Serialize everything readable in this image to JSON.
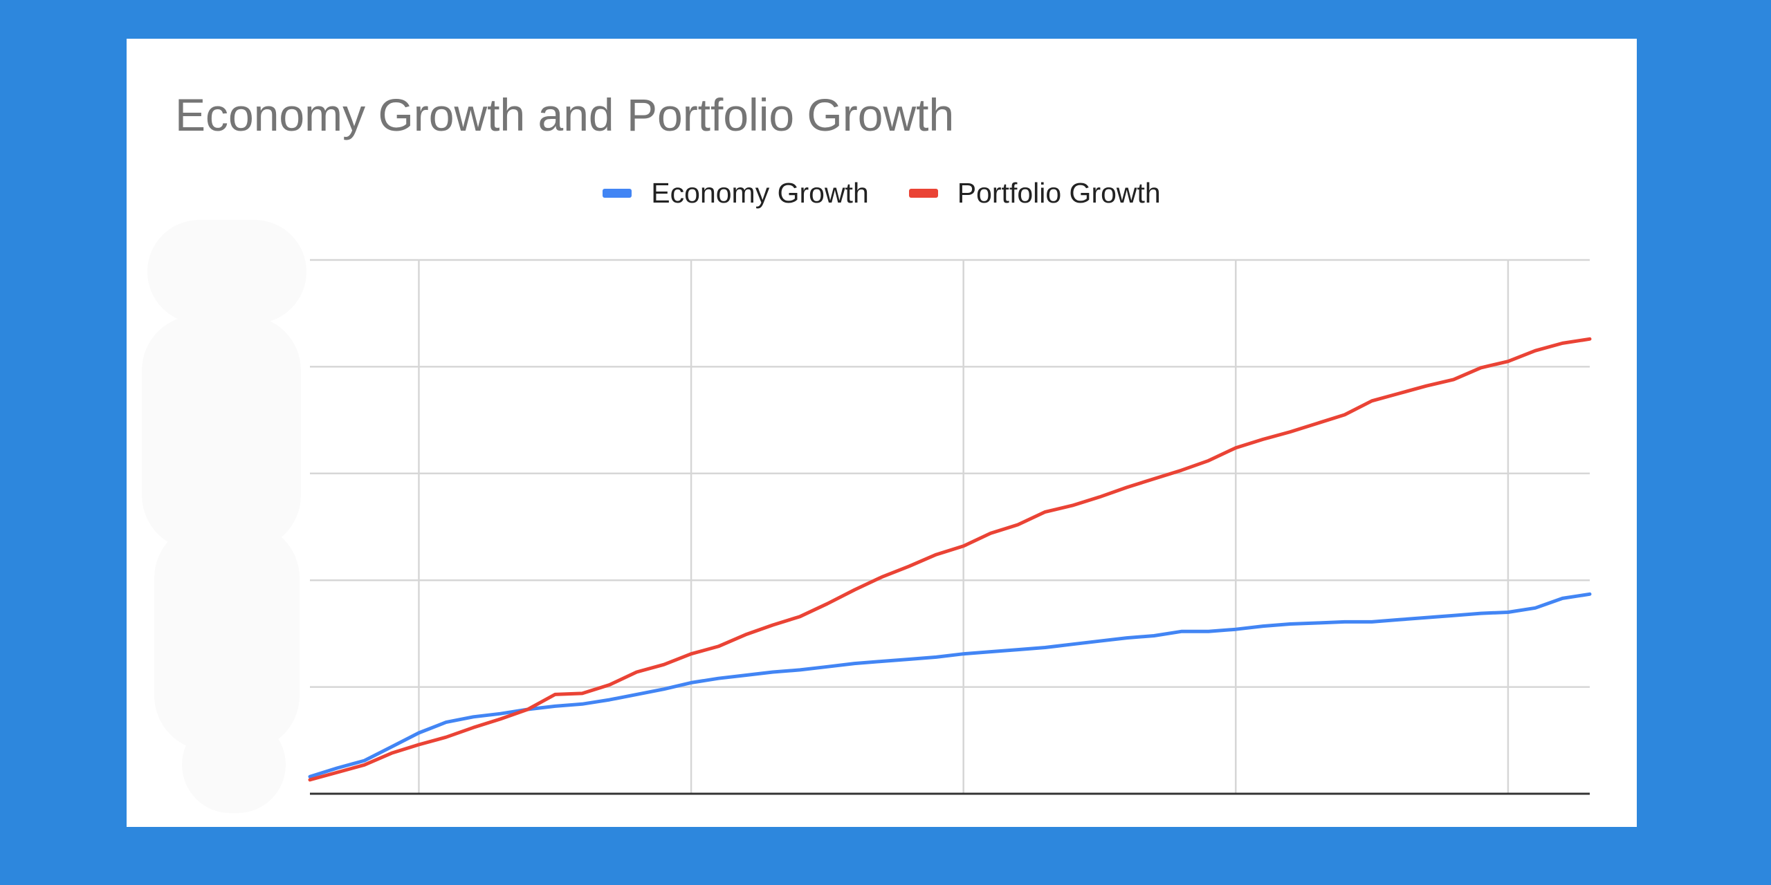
{
  "chart_data": {
    "type": "line",
    "title": "Economy Growth and Portfolio Growth",
    "xlabel": "",
    "ylabel": "",
    "grid": true,
    "legend_position": "top",
    "x": [
      0,
      1,
      2,
      3,
      4,
      5,
      6,
      7,
      8,
      9,
      10,
      11,
      12,
      13,
      14,
      15,
      16,
      17,
      18,
      19,
      20,
      21,
      22,
      23,
      24,
      25,
      26,
      27,
      28,
      29,
      30,
      31,
      32,
      33,
      34,
      35,
      36,
      37,
      38,
      39,
      40,
      41,
      42,
      43,
      44,
      45,
      46,
      47
    ],
    "xlim": [
      0,
      47
    ],
    "ylim": [
      0,
      5
    ],
    "series": [
      {
        "name": "Economy Growth",
        "color": "#4285f4",
        "values": [
          0.16,
          0.24,
          0.31,
          0.44,
          0.57,
          0.67,
          0.72,
          0.75,
          0.79,
          0.82,
          0.84,
          0.88,
          0.93,
          0.98,
          1.04,
          1.08,
          1.11,
          1.14,
          1.16,
          1.19,
          1.22,
          1.24,
          1.26,
          1.28,
          1.31,
          1.33,
          1.35,
          1.37,
          1.4,
          1.43,
          1.46,
          1.48,
          1.52,
          1.52,
          1.54,
          1.57,
          1.59,
          1.6,
          1.61,
          1.61,
          1.63,
          1.65,
          1.67,
          1.69,
          1.7,
          1.74,
          1.83,
          1.87
        ]
      },
      {
        "name": "Portfolio Growth",
        "color": "#ea4335",
        "values": [
          0.13,
          0.2,
          0.27,
          0.38,
          0.46,
          0.53,
          0.62,
          0.7,
          0.79,
          0.93,
          0.94,
          1.02,
          1.14,
          1.21,
          1.31,
          1.38,
          1.49,
          1.58,
          1.66,
          1.78,
          1.91,
          2.03,
          2.13,
          2.24,
          2.32,
          2.44,
          2.52,
          2.64,
          2.7,
          2.78,
          2.87,
          2.95,
          3.03,
          3.12,
          3.24,
          3.32,
          3.39,
          3.47,
          3.55,
          3.68,
          3.75,
          3.82,
          3.88,
          3.99,
          4.05,
          4.15,
          4.22,
          4.26
        ]
      }
    ]
  }
}
